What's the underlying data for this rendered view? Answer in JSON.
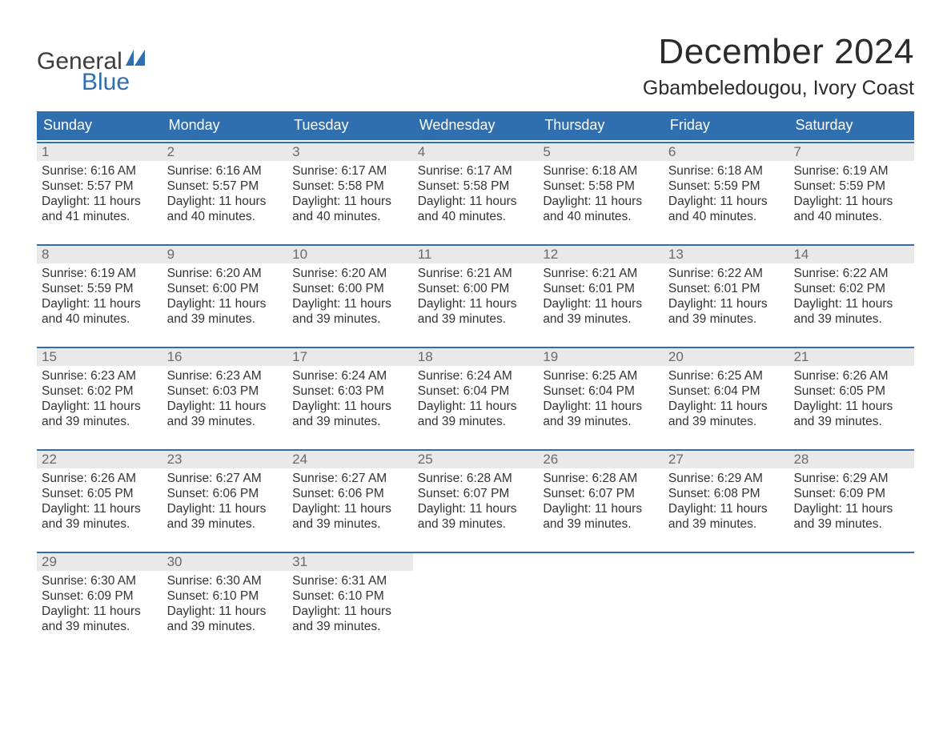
{
  "logo": {
    "line1": "General",
    "line2": "Blue",
    "accent_color": "#2f6fb0",
    "text_color": "#3d3d3d"
  },
  "title": "December 2024",
  "subtitle": "Gbambeledougou, Ivory Coast",
  "colors": {
    "header_bg": "#2f6fb0",
    "header_text": "#ffffff",
    "daynum_bg": "#e9e9e9",
    "daynum_text": "#6a6a6a",
    "body_text": "#333333",
    "week_border": "#2f6fb0",
    "background": "#ffffff"
  },
  "fonts": {
    "title_size": 44,
    "subtitle_size": 25,
    "header_size": 18,
    "daynum_size": 17,
    "detail_size": 15.5
  },
  "day_headers": [
    "Sunday",
    "Monday",
    "Tuesday",
    "Wednesday",
    "Thursday",
    "Friday",
    "Saturday"
  ],
  "labels": {
    "sunrise": "Sunrise:",
    "sunset": "Sunset:",
    "daylight_prefix": "Daylight:",
    "and": "and"
  },
  "weeks": [
    [
      {
        "num": "1",
        "sunrise": "6:16 AM",
        "sunset": "5:57 PM",
        "dl_h": "11",
        "dl_m": "41"
      },
      {
        "num": "2",
        "sunrise": "6:16 AM",
        "sunset": "5:57 PM",
        "dl_h": "11",
        "dl_m": "40"
      },
      {
        "num": "3",
        "sunrise": "6:17 AM",
        "sunset": "5:58 PM",
        "dl_h": "11",
        "dl_m": "40"
      },
      {
        "num": "4",
        "sunrise": "6:17 AM",
        "sunset": "5:58 PM",
        "dl_h": "11",
        "dl_m": "40"
      },
      {
        "num": "5",
        "sunrise": "6:18 AM",
        "sunset": "5:58 PM",
        "dl_h": "11",
        "dl_m": "40"
      },
      {
        "num": "6",
        "sunrise": "6:18 AM",
        "sunset": "5:59 PM",
        "dl_h": "11",
        "dl_m": "40"
      },
      {
        "num": "7",
        "sunrise": "6:19 AM",
        "sunset": "5:59 PM",
        "dl_h": "11",
        "dl_m": "40"
      }
    ],
    [
      {
        "num": "8",
        "sunrise": "6:19 AM",
        "sunset": "5:59 PM",
        "dl_h": "11",
        "dl_m": "40"
      },
      {
        "num": "9",
        "sunrise": "6:20 AM",
        "sunset": "6:00 PM",
        "dl_h": "11",
        "dl_m": "39"
      },
      {
        "num": "10",
        "sunrise": "6:20 AM",
        "sunset": "6:00 PM",
        "dl_h": "11",
        "dl_m": "39"
      },
      {
        "num": "11",
        "sunrise": "6:21 AM",
        "sunset": "6:00 PM",
        "dl_h": "11",
        "dl_m": "39"
      },
      {
        "num": "12",
        "sunrise": "6:21 AM",
        "sunset": "6:01 PM",
        "dl_h": "11",
        "dl_m": "39"
      },
      {
        "num": "13",
        "sunrise": "6:22 AM",
        "sunset": "6:01 PM",
        "dl_h": "11",
        "dl_m": "39"
      },
      {
        "num": "14",
        "sunrise": "6:22 AM",
        "sunset": "6:02 PM",
        "dl_h": "11",
        "dl_m": "39"
      }
    ],
    [
      {
        "num": "15",
        "sunrise": "6:23 AM",
        "sunset": "6:02 PM",
        "dl_h": "11",
        "dl_m": "39"
      },
      {
        "num": "16",
        "sunrise": "6:23 AM",
        "sunset": "6:03 PM",
        "dl_h": "11",
        "dl_m": "39"
      },
      {
        "num": "17",
        "sunrise": "6:24 AM",
        "sunset": "6:03 PM",
        "dl_h": "11",
        "dl_m": "39"
      },
      {
        "num": "18",
        "sunrise": "6:24 AM",
        "sunset": "6:04 PM",
        "dl_h": "11",
        "dl_m": "39"
      },
      {
        "num": "19",
        "sunrise": "6:25 AM",
        "sunset": "6:04 PM",
        "dl_h": "11",
        "dl_m": "39"
      },
      {
        "num": "20",
        "sunrise": "6:25 AM",
        "sunset": "6:04 PM",
        "dl_h": "11",
        "dl_m": "39"
      },
      {
        "num": "21",
        "sunrise": "6:26 AM",
        "sunset": "6:05 PM",
        "dl_h": "11",
        "dl_m": "39"
      }
    ],
    [
      {
        "num": "22",
        "sunrise": "6:26 AM",
        "sunset": "6:05 PM",
        "dl_h": "11",
        "dl_m": "39"
      },
      {
        "num": "23",
        "sunrise": "6:27 AM",
        "sunset": "6:06 PM",
        "dl_h": "11",
        "dl_m": "39"
      },
      {
        "num": "24",
        "sunrise": "6:27 AM",
        "sunset": "6:06 PM",
        "dl_h": "11",
        "dl_m": "39"
      },
      {
        "num": "25",
        "sunrise": "6:28 AM",
        "sunset": "6:07 PM",
        "dl_h": "11",
        "dl_m": "39"
      },
      {
        "num": "26",
        "sunrise": "6:28 AM",
        "sunset": "6:07 PM",
        "dl_h": "11",
        "dl_m": "39"
      },
      {
        "num": "27",
        "sunrise": "6:29 AM",
        "sunset": "6:08 PM",
        "dl_h": "11",
        "dl_m": "39"
      },
      {
        "num": "28",
        "sunrise": "6:29 AM",
        "sunset": "6:09 PM",
        "dl_h": "11",
        "dl_m": "39"
      }
    ],
    [
      {
        "num": "29",
        "sunrise": "6:30 AM",
        "sunset": "6:09 PM",
        "dl_h": "11",
        "dl_m": "39"
      },
      {
        "num": "30",
        "sunrise": "6:30 AM",
        "sunset": "6:10 PM",
        "dl_h": "11",
        "dl_m": "39"
      },
      {
        "num": "31",
        "sunrise": "6:31 AM",
        "sunset": "6:10 PM",
        "dl_h": "11",
        "dl_m": "39"
      },
      null,
      null,
      null,
      null
    ]
  ]
}
